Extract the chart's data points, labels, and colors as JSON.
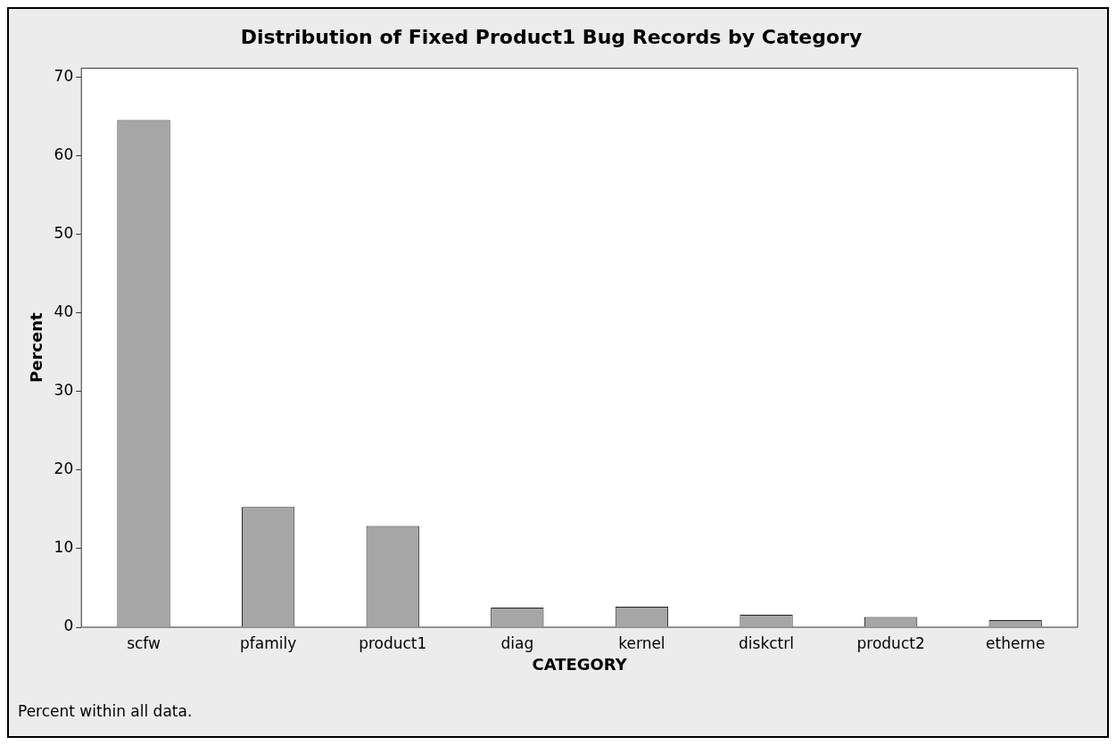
{
  "chart_data": {
    "type": "bar",
    "title": "Distribution of Fixed Product1 Bug Records by Category",
    "xlabel": "CATEGORY",
    "ylabel": "Percent",
    "categories": [
      "scfw",
      "pfamily",
      "product1",
      "diag",
      "kernel",
      "diskctrl",
      "product2",
      "etherne"
    ],
    "values": [
      64.6,
      15.3,
      12.9,
      2.5,
      2.6,
      1.6,
      1.3,
      0.9
    ],
    "color": "#a6a6a6",
    "ylim": [
      0,
      71.2
    ],
    "yticks": [
      0,
      10,
      20,
      30,
      40,
      50,
      60,
      70
    ],
    "grid": false,
    "legend": false,
    "annotations": [
      "Percent within all data."
    ]
  }
}
